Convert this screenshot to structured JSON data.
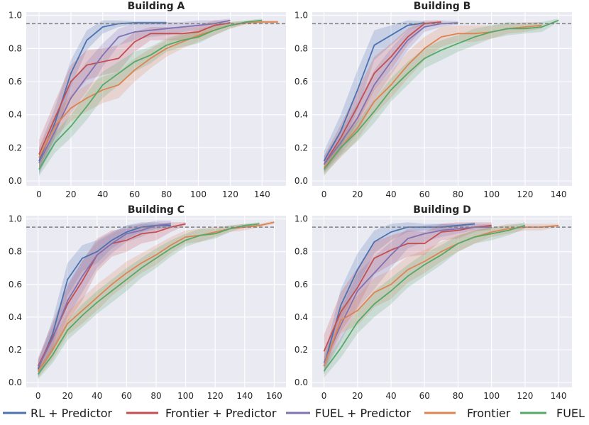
{
  "chart_data": [
    {
      "type": "line",
      "title": "Building A",
      "xlim": [
        -8,
        155
      ],
      "ylim": [
        -0.03,
        1.02
      ],
      "xticks": [
        0,
        20,
        40,
        60,
        80,
        100,
        120,
        140
      ],
      "yticks": [
        0.0,
        0.2,
        0.4,
        0.6,
        0.8,
        1.0
      ],
      "threshold": 0.95,
      "threshold_x": [
        -8,
        155
      ],
      "series": [
        {
          "name": "RL + Predictor",
          "x": [
            0,
            10,
            20,
            30,
            40,
            50,
            60,
            70,
            80
          ],
          "y": [
            0.12,
            0.35,
            0.65,
            0.85,
            0.93,
            0.95,
            0.955,
            0.955,
            0.955
          ],
          "band": [
            0.08,
            0.09,
            0.08,
            0.06,
            0.04,
            0.02,
            0.01,
            0.01,
            0.01
          ]
        },
        {
          "name": "Frontier + Predictor",
          "x": [
            0,
            10,
            20,
            30,
            40,
            50,
            60,
            70,
            80,
            90,
            100,
            110,
            120
          ],
          "y": [
            0.16,
            0.38,
            0.6,
            0.7,
            0.72,
            0.74,
            0.84,
            0.89,
            0.89,
            0.89,
            0.9,
            0.94,
            0.955
          ],
          "band": [
            0.09,
            0.1,
            0.1,
            0.09,
            0.08,
            0.08,
            0.06,
            0.04,
            0.04,
            0.04,
            0.04,
            0.03,
            0.01
          ]
        },
        {
          "name": "FUEL + Predictor",
          "x": [
            0,
            10,
            20,
            30,
            40,
            50,
            60,
            70,
            80,
            90,
            100,
            110,
            120
          ],
          "y": [
            0.11,
            0.3,
            0.5,
            0.63,
            0.76,
            0.87,
            0.9,
            0.91,
            0.92,
            0.93,
            0.94,
            0.95,
            0.97
          ],
          "band": [
            0.06,
            0.08,
            0.09,
            0.09,
            0.07,
            0.05,
            0.05,
            0.04,
            0.04,
            0.03,
            0.03,
            0.02,
            0.01
          ]
        },
        {
          "name": "Frontier",
          "x": [
            0,
            10,
            20,
            30,
            40,
            50,
            60,
            70,
            80,
            90,
            100,
            110,
            120,
            130,
            140,
            150
          ],
          "y": [
            0.14,
            0.33,
            0.44,
            0.5,
            0.55,
            0.58,
            0.67,
            0.74,
            0.8,
            0.84,
            0.88,
            0.91,
            0.94,
            0.955,
            0.96,
            0.96
          ],
          "band": [
            0.06,
            0.07,
            0.08,
            0.08,
            0.08,
            0.08,
            0.07,
            0.06,
            0.05,
            0.04,
            0.04,
            0.03,
            0.02,
            0.01,
            0.01,
            0.01
          ]
        },
        {
          "name": "FUEL",
          "x": [
            0,
            10,
            20,
            30,
            40,
            50,
            60,
            70,
            80,
            90,
            100,
            110,
            120,
            130,
            140
          ],
          "y": [
            0.07,
            0.23,
            0.33,
            0.45,
            0.58,
            0.65,
            0.72,
            0.76,
            0.82,
            0.85,
            0.87,
            0.91,
            0.94,
            0.96,
            0.97
          ],
          "band": [
            0.04,
            0.06,
            0.07,
            0.08,
            0.08,
            0.07,
            0.06,
            0.05,
            0.04,
            0.04,
            0.04,
            0.03,
            0.02,
            0.01,
            0.01
          ]
        }
      ]
    },
    {
      "type": "line",
      "title": "Building B",
      "xlim": [
        -7,
        148
      ],
      "ylim": [
        -0.03,
        1.02
      ],
      "xticks": [
        0,
        20,
        40,
        60,
        80,
        100,
        120,
        140
      ],
      "yticks": [
        0.0,
        0.2,
        0.4,
        0.6,
        0.8,
        1.0
      ],
      "threshold": 0.95,
      "threshold_x": [
        -7,
        148
      ],
      "series": [
        {
          "name": "RL + Predictor",
          "x": [
            0,
            10,
            20,
            30,
            40,
            50,
            60
          ],
          "y": [
            0.12,
            0.3,
            0.55,
            0.82,
            0.88,
            0.94,
            0.955
          ],
          "band": [
            0.06,
            0.1,
            0.12,
            0.09,
            0.06,
            0.03,
            0.01
          ]
        },
        {
          "name": "Frontier + Predictor",
          "x": [
            0,
            10,
            20,
            30,
            40,
            50,
            60,
            70
          ],
          "y": [
            0.1,
            0.26,
            0.45,
            0.65,
            0.75,
            0.87,
            0.95,
            0.96
          ],
          "band": [
            0.05,
            0.08,
            0.1,
            0.1,
            0.08,
            0.05,
            0.02,
            0.01
          ]
        },
        {
          "name": "FUEL + Predictor",
          "x": [
            0,
            10,
            20,
            30,
            40,
            50,
            60,
            70,
            80
          ],
          "y": [
            0.1,
            0.23,
            0.38,
            0.58,
            0.72,
            0.85,
            0.93,
            0.95,
            0.955
          ],
          "band": [
            0.05,
            0.07,
            0.09,
            0.09,
            0.08,
            0.06,
            0.03,
            0.02,
            0.01
          ]
        },
        {
          "name": "Frontier",
          "x": [
            0,
            10,
            20,
            30,
            40,
            50,
            60,
            70,
            80,
            90,
            100,
            110,
            120,
            130
          ],
          "y": [
            0.08,
            0.2,
            0.32,
            0.48,
            0.58,
            0.7,
            0.8,
            0.87,
            0.89,
            0.89,
            0.9,
            0.92,
            0.93,
            0.94
          ],
          "band": [
            0.04,
            0.06,
            0.07,
            0.08,
            0.08,
            0.08,
            0.07,
            0.06,
            0.05,
            0.05,
            0.04,
            0.03,
            0.03,
            0.02
          ]
        },
        {
          "name": "FUEL",
          "x": [
            0,
            10,
            20,
            30,
            40,
            50,
            60,
            70,
            80,
            90,
            100,
            110,
            120,
            130,
            140
          ],
          "y": [
            0.07,
            0.2,
            0.3,
            0.42,
            0.55,
            0.65,
            0.74,
            0.79,
            0.83,
            0.87,
            0.9,
            0.92,
            0.92,
            0.93,
            0.97
          ],
          "band": [
            0.04,
            0.05,
            0.06,
            0.07,
            0.07,
            0.07,
            0.06,
            0.06,
            0.05,
            0.05,
            0.04,
            0.04,
            0.03,
            0.03,
            0.01
          ]
        }
      ]
    },
    {
      "type": "line",
      "title": "Building C",
      "xlim": [
        -8,
        168
      ],
      "ylim": [
        -0.03,
        1.02
      ],
      "xticks": [
        0,
        20,
        40,
        60,
        80,
        100,
        120,
        140,
        160
      ],
      "yticks": [
        0.0,
        0.2,
        0.4,
        0.6,
        0.8,
        1.0
      ],
      "threshold": 0.95,
      "threshold_x": [
        -8,
        160
      ],
      "series": [
        {
          "name": "RL + Predictor",
          "x": [
            0,
            10,
            20,
            30,
            40,
            50,
            60,
            70,
            80,
            90
          ],
          "y": [
            0.08,
            0.3,
            0.63,
            0.76,
            0.8,
            0.87,
            0.92,
            0.95,
            0.96,
            0.96
          ],
          "band": [
            0.05,
            0.09,
            0.1,
            0.08,
            0.07,
            0.05,
            0.04,
            0.03,
            0.02,
            0.01
          ]
        },
        {
          "name": "Frontier + Predictor",
          "x": [
            0,
            10,
            20,
            30,
            40,
            50,
            60,
            70,
            80,
            90,
            100
          ],
          "y": [
            0.1,
            0.28,
            0.48,
            0.62,
            0.78,
            0.85,
            0.87,
            0.91,
            0.92,
            0.95,
            0.97
          ],
          "band": [
            0.05,
            0.09,
            0.11,
            0.12,
            0.1,
            0.08,
            0.07,
            0.06,
            0.05,
            0.03,
            0.01
          ]
        },
        {
          "name": "FUEL + Predictor",
          "x": [
            0,
            10,
            20,
            30,
            40,
            50,
            60,
            70,
            80,
            90
          ],
          "y": [
            0.09,
            0.27,
            0.5,
            0.65,
            0.78,
            0.85,
            0.91,
            0.93,
            0.96,
            0.97
          ],
          "band": [
            0.05,
            0.08,
            0.1,
            0.1,
            0.08,
            0.06,
            0.05,
            0.04,
            0.03,
            0.02
          ]
        },
        {
          "name": "Frontier",
          "x": [
            0,
            10,
            20,
            30,
            40,
            50,
            60,
            70,
            80,
            90,
            100,
            110,
            120,
            130,
            140,
            150,
            160
          ],
          "y": [
            0.07,
            0.2,
            0.36,
            0.44,
            0.52,
            0.6,
            0.67,
            0.73,
            0.78,
            0.84,
            0.89,
            0.9,
            0.92,
            0.94,
            0.95,
            0.96,
            0.98
          ],
          "band": [
            0.04,
            0.06,
            0.07,
            0.08,
            0.08,
            0.07,
            0.07,
            0.06,
            0.06,
            0.05,
            0.04,
            0.04,
            0.03,
            0.02,
            0.02,
            0.01,
            0.01
          ]
        },
        {
          "name": "FUEL",
          "x": [
            0,
            10,
            20,
            30,
            40,
            50,
            60,
            70,
            80,
            90,
            100,
            110,
            120,
            130,
            140,
            150
          ],
          "y": [
            0.05,
            0.17,
            0.32,
            0.41,
            0.49,
            0.56,
            0.63,
            0.7,
            0.76,
            0.82,
            0.87,
            0.9,
            0.91,
            0.94,
            0.96,
            0.97
          ],
          "band": [
            0.03,
            0.05,
            0.06,
            0.07,
            0.07,
            0.07,
            0.07,
            0.06,
            0.06,
            0.05,
            0.04,
            0.04,
            0.03,
            0.02,
            0.01,
            0.01
          ]
        }
      ]
    },
    {
      "type": "line",
      "title": "Building D",
      "xlim": [
        -7,
        148
      ],
      "ylim": [
        -0.03,
        1.02
      ],
      "xticks": [
        0,
        20,
        40,
        60,
        80,
        100,
        120,
        140
      ],
      "yticks": [
        0.0,
        0.2,
        0.4,
        0.6,
        0.8,
        1.0
      ],
      "threshold": 0.95,
      "threshold_x": [
        -7,
        148
      ],
      "series": [
        {
          "name": "RL + Predictor",
          "x": [
            0,
            10,
            20,
            30,
            40,
            50,
            60,
            70,
            80,
            90
          ],
          "y": [
            0.1,
            0.47,
            0.69,
            0.86,
            0.92,
            0.95,
            0.95,
            0.95,
            0.96,
            0.97
          ],
          "band": [
            0.05,
            0.1,
            0.1,
            0.07,
            0.05,
            0.03,
            0.02,
            0.02,
            0.01,
            0.01
          ]
        },
        {
          "name": "Frontier + Predictor",
          "x": [
            0,
            10,
            20,
            30,
            40,
            50,
            60,
            70,
            80,
            90,
            100
          ],
          "y": [
            0.19,
            0.43,
            0.58,
            0.76,
            0.81,
            0.85,
            0.85,
            0.92,
            0.93,
            0.95,
            0.96
          ],
          "band": [
            0.1,
            0.12,
            0.12,
            0.1,
            0.09,
            0.08,
            0.07,
            0.05,
            0.05,
            0.03,
            0.02
          ]
        },
        {
          "name": "FUEL + Predictor",
          "x": [
            0,
            10,
            20,
            30,
            40,
            50,
            60,
            70,
            80,
            90,
            100
          ],
          "y": [
            0.12,
            0.35,
            0.56,
            0.67,
            0.78,
            0.88,
            0.91,
            0.93,
            0.94,
            0.95,
            0.95
          ],
          "band": [
            0.06,
            0.1,
            0.11,
            0.1,
            0.08,
            0.06,
            0.05,
            0.04,
            0.03,
            0.02,
            0.02
          ]
        },
        {
          "name": "Frontier",
          "x": [
            0,
            10,
            20,
            30,
            40,
            50,
            60,
            70,
            80,
            90,
            100,
            110,
            120,
            130,
            140
          ],
          "y": [
            0.1,
            0.38,
            0.44,
            0.55,
            0.6,
            0.69,
            0.74,
            0.8,
            0.85,
            0.89,
            0.92,
            0.94,
            0.95,
            0.95,
            0.96
          ],
          "band": [
            0.05,
            0.08,
            0.09,
            0.09,
            0.09,
            0.08,
            0.07,
            0.06,
            0.05,
            0.04,
            0.03,
            0.03,
            0.02,
            0.02,
            0.01
          ]
        },
        {
          "name": "FUEL",
          "x": [
            0,
            10,
            20,
            30,
            40,
            50,
            60,
            70,
            80,
            90,
            100,
            110,
            120
          ],
          "y": [
            0.07,
            0.21,
            0.37,
            0.48,
            0.56,
            0.65,
            0.72,
            0.78,
            0.85,
            0.89,
            0.91,
            0.93,
            0.96
          ],
          "band": [
            0.04,
            0.06,
            0.07,
            0.08,
            0.08,
            0.07,
            0.07,
            0.06,
            0.05,
            0.04,
            0.04,
            0.03,
            0.02
          ]
        }
      ]
    }
  ],
  "legend": [
    {
      "label": "RL + Predictor",
      "color": "#4c72b0"
    },
    {
      "label": "Frontier + Predictor",
      "color": "#c44e52"
    },
    {
      "label": "FUEL + Predictor",
      "color": "#8172b3"
    },
    {
      "label": "Frontier",
      "color": "#dd8452"
    },
    {
      "label": "FUEL",
      "color": "#55a868"
    }
  ],
  "colors": {
    "panel_bg": "#eaeaf2",
    "grid": "#ffffff",
    "threshold_line": "#808080",
    "RL + Predictor": "#4c72b0",
    "Frontier + Predictor": "#c44e52",
    "FUEL + Predictor": "#8172b3",
    "Frontier": "#dd8452",
    "FUEL": "#55a868"
  }
}
